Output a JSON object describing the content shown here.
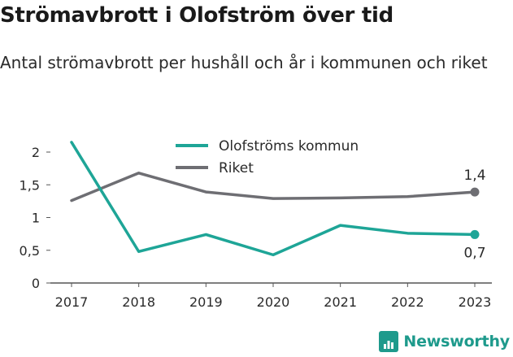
{
  "title": "Strömavbrott i Olofström över tid",
  "subtitle": "Antal strömavbrott per hushåll och år i kommunen och riket",
  "brand": {
    "name": "Newsworthy",
    "icon": "bar-chart-icon",
    "color": "#1e9a8c"
  },
  "chart_data": {
    "type": "line",
    "x": [
      2017,
      2018,
      2019,
      2020,
      2021,
      2022,
      2023
    ],
    "xlabels": [
      "2017",
      "2018",
      "2019",
      "2020",
      "2021",
      "2022",
      "2023"
    ],
    "ylim": [
      0,
      2
    ],
    "yticks": [
      0,
      0.5,
      1,
      1.5,
      2
    ],
    "ytick_labels": [
      "0",
      "0,5",
      "1",
      "1,5",
      "2"
    ],
    "grid": false,
    "legend": "top-center",
    "series": [
      {
        "name": "Olofströms kommun",
        "color": "#1ea597",
        "values": [
          2.15,
          0.48,
          0.74,
          0.43,
          0.88,
          0.76,
          0.74
        ],
        "end_label": "0,7",
        "end_label_position": "below"
      },
      {
        "name": "Riket",
        "color": "#6e6e73",
        "values": [
          1.26,
          1.68,
          1.39,
          1.29,
          1.3,
          1.32,
          1.39
        ],
        "end_label": "1,4",
        "end_label_position": "above"
      }
    ]
  }
}
